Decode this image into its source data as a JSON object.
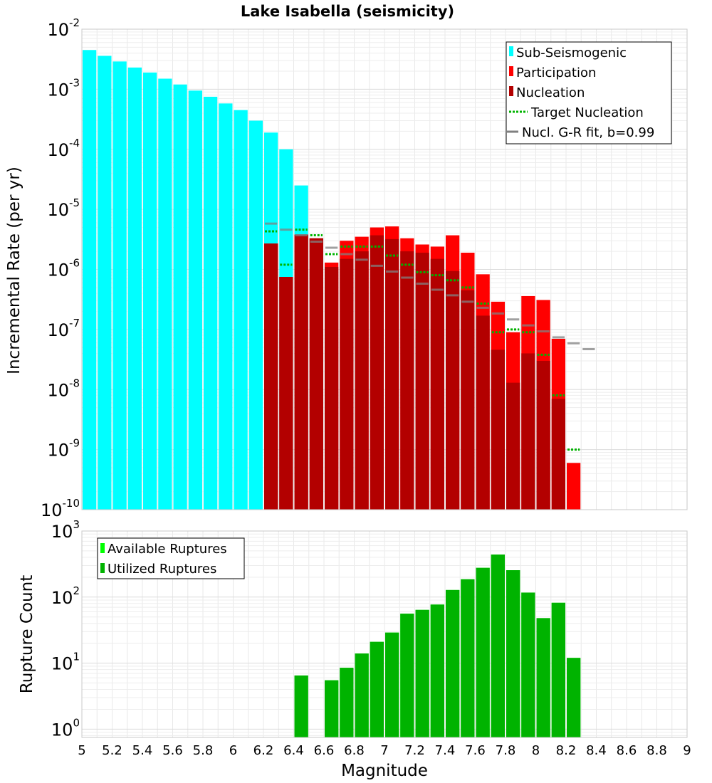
{
  "chart_data": [
    {
      "type": "bar",
      "title": "Lake Isabella (seismicity)",
      "ylabel": "Incremental Rate (per yr)",
      "xlabel": "Magnitude",
      "xlim": [
        5,
        9
      ],
      "ylim": [
        1e-10,
        0.01
      ],
      "yscale": "log",
      "grid": true,
      "legend_position": "top-right",
      "bin_centers": [
        5.05,
        5.15,
        5.25,
        5.35,
        5.45,
        5.55,
        5.65,
        5.75,
        5.85,
        5.95,
        6.05,
        6.15,
        6.25,
        6.35,
        6.45,
        6.55,
        6.65,
        6.75,
        6.85,
        6.95,
        7.05,
        7.15,
        7.25,
        7.35,
        7.45,
        7.55,
        7.65,
        7.75,
        7.85,
        7.95,
        8.05,
        8.15,
        8.25,
        8.35
      ],
      "series": [
        {
          "name": "Sub-Seismogenic",
          "color": "#00ffff",
          "values": [
            0.0045,
            0.0036,
            0.0029,
            0.0023,
            0.0019,
            0.0015,
            0.0012,
            0.00095,
            0.00075,
            0.00058,
            0.00045,
            0.0003,
            0.00019,
            0.0001,
            2.5e-05,
            null,
            null,
            null,
            null,
            null,
            null,
            null,
            null,
            null,
            null,
            null,
            null,
            null,
            null,
            null,
            null,
            null,
            null,
            null
          ]
        },
        {
          "name": "Participation",
          "color": "#ff0000",
          "values": [
            null,
            null,
            null,
            null,
            null,
            null,
            null,
            null,
            null,
            null,
            null,
            null,
            2.7e-06,
            7.5e-07,
            3.8e-06,
            3.3e-06,
            1.3e-06,
            3e-06,
            3.5e-06,
            5e-06,
            5.2e-06,
            3.3e-06,
            2.6e-06,
            2.4e-06,
            3.7e-06,
            1.9e-06,
            8.3e-07,
            2.9e-07,
            9e-08,
            3.6e-07,
            3.1e-07,
            7e-08,
            6e-10,
            null
          ]
        },
        {
          "name": "Nucleation",
          "color": "#b30000",
          "values": [
            null,
            null,
            null,
            null,
            null,
            null,
            null,
            null,
            null,
            null,
            null,
            null,
            2.7e-06,
            7.5e-07,
            3.8e-06,
            3.3e-06,
            1.1e-06,
            1.5e-06,
            2e-06,
            3.7e-06,
            3.2e-06,
            2e-06,
            1.9e-06,
            1.5e-06,
            9.4e-07,
            4.5e-07,
            1.7e-07,
            4.6e-08,
            1.3e-08,
            4e-08,
            3e-08,
            7e-09,
            null,
            null
          ]
        },
        {
          "name": "Target Nucleation",
          "color": "#00b300",
          "values": [
            null,
            null,
            null,
            null,
            null,
            null,
            null,
            null,
            null,
            null,
            null,
            null,
            4.3e-06,
            1.2e-06,
            4.6e-06,
            3.7e-06,
            1.8e-06,
            2.4e-06,
            2.4e-06,
            2.4e-06,
            1.7e-06,
            1.2e-06,
            9e-07,
            8e-07,
            6.6e-07,
            5e-07,
            2.7e-07,
            9e-08,
            1e-07,
            9e-08,
            3.8e-08,
            8e-09,
            1e-09,
            null
          ]
        },
        {
          "name": "Nucl. G-R fit, b=0.99",
          "color": "#808080",
          "values": [
            null,
            null,
            null,
            null,
            null,
            null,
            null,
            null,
            null,
            null,
            null,
            null,
            5.8e-06,
            4.6e-06,
            3.7e-06,
            2.9e-06,
            2.3e-06,
            1.8e-06,
            1.45e-06,
            1.15e-06,
            9.2e-07,
            7.3e-07,
            5.8e-07,
            4.6e-07,
            3.7e-07,
            2.9e-07,
            2.3e-07,
            1.85e-07,
            1.47e-07,
            1.17e-07,
            9.3e-08,
            7.4e-08,
            5.9e-08,
            4.7e-08
          ]
        }
      ]
    },
    {
      "type": "bar",
      "ylabel": "Rupture Count",
      "xlabel": "Magnitude",
      "xlim": [
        5,
        9
      ],
      "ylim": [
        0.75,
        1000
      ],
      "yscale": "log",
      "grid": true,
      "legend_position": "top-left",
      "bin_centers": [
        6.45,
        6.55,
        6.65,
        6.75,
        6.85,
        6.95,
        7.05,
        7.15,
        7.25,
        7.35,
        7.45,
        7.55,
        7.65,
        7.75,
        7.85,
        7.95,
        8.05,
        8.15,
        8.25
      ],
      "series": [
        {
          "name": "Available Ruptures",
          "color": "#00ff00",
          "values": [
            6.5,
            null,
            5.5,
            8.5,
            14,
            21,
            29,
            56,
            64,
            77,
            128,
            186,
            277,
            440,
            255,
            117,
            48,
            82,
            12
          ]
        },
        {
          "name": "Utilized Ruptures",
          "color": "#00b300",
          "values": [
            6.5,
            null,
            5.5,
            8.5,
            14,
            21,
            29,
            56,
            64,
            77,
            128,
            186,
            277,
            440,
            255,
            117,
            48,
            82,
            12
          ]
        }
      ]
    }
  ],
  "x_ticks": [
    "5",
    "5.2",
    "5.4",
    "5.6",
    "5.8",
    "6",
    "6.2",
    "6.4",
    "6.6",
    "6.8",
    "7",
    "7.2",
    "7.4",
    "7.6",
    "7.8",
    "8",
    "8.2",
    "8.4",
    "8.6",
    "8.8",
    "9"
  ],
  "top_y_ticks": [
    {
      "base": "10",
      "exp": "-10"
    },
    {
      "base": "10",
      "exp": "-9"
    },
    {
      "base": "10",
      "exp": "-8"
    },
    {
      "base": "10",
      "exp": "-7"
    },
    {
      "base": "10",
      "exp": "-6"
    },
    {
      "base": "10",
      "exp": "-5"
    },
    {
      "base": "10",
      "exp": "-4"
    },
    {
      "base": "10",
      "exp": "-3"
    },
    {
      "base": "10",
      "exp": "-2"
    }
  ],
  "bottom_y_ticks": [
    {
      "base": "10",
      "exp": "0"
    },
    {
      "base": "10",
      "exp": "1"
    },
    {
      "base": "10",
      "exp": "2"
    },
    {
      "base": "10",
      "exp": "3"
    }
  ]
}
